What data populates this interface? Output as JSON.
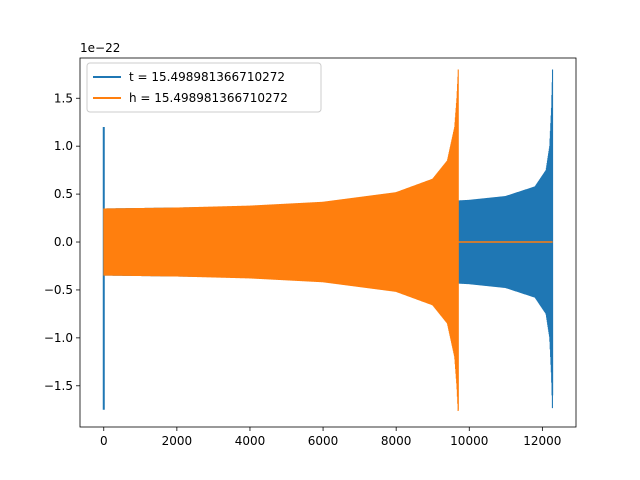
{
  "chart_data": {
    "type": "line",
    "title": "",
    "xlabel": "",
    "ylabel": "",
    "xlim": [
      -650,
      12920
    ],
    "ylim": [
      -1.93e-22,
      1.92e-22
    ],
    "y_offset_label": "1e−22",
    "x_ticks": [
      0,
      2000,
      4000,
      6000,
      8000,
      10000,
      12000
    ],
    "x_tick_labels": [
      "0",
      "2000",
      "4000",
      "6000",
      "8000",
      "10000",
      "12000"
    ],
    "y_ticks": [
      -1.5e-22,
      -1e-22,
      -5e-23,
      0,
      5e-23,
      1e-22,
      1.5e-22
    ],
    "y_tick_labels": [
      "−1.5",
      "−1.0",
      "−0.5",
      "0.0",
      "0.5",
      "1.0",
      "1.5"
    ],
    "legend_position": "upper-left",
    "grid": false,
    "series": [
      {
        "name": "t = 15.498981366710272",
        "color": "#1f77b4",
        "start_spike": {
          "x": 0,
          "y_max": 1.2e-22,
          "y_min": -1.75e-22
        },
        "envelope": {
          "x": [
            0,
            2000,
            4000,
            6000,
            8000,
            10000,
            11000,
            11800,
            12100,
            12200,
            12250,
            12280
          ],
          "y": [
            3.5e-23,
            3.6e-23,
            3.7e-23,
            3.8e-23,
            4e-23,
            4.4e-23,
            4.8e-23,
            5.8e-23,
            7.5e-23,
            1e-22,
            1.4e-22,
            1.8e-22
          ]
        },
        "end_x": 12280,
        "end_y_min": -1.6e-22
      },
      {
        "name": "h = 15.498981366710272",
        "color": "#ff7f0e",
        "envelope": {
          "x": [
            0,
            2000,
            4000,
            6000,
            8000,
            9000,
            9400,
            9600,
            9660,
            9700
          ],
          "y": [
            3.5e-23,
            3.6e-23,
            3.8e-23,
            4.2e-23,
            5.2e-23,
            6.6e-23,
            8.5e-23,
            1.2e-22,
            1.5e-22,
            1.8e-22
          ]
        },
        "end_x": 9700,
        "end_y_min": -1.75e-22,
        "flat_after": {
          "x": [
            9700,
            12280
          ],
          "y": 0
        }
      }
    ]
  }
}
